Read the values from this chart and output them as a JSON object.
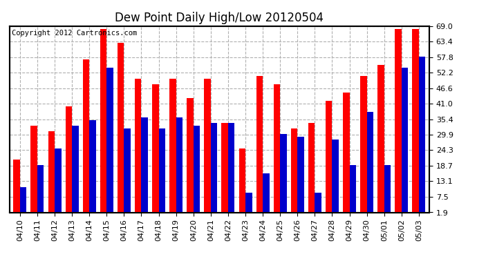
{
  "title": "Dew Point Daily High/Low 20120504",
  "copyright": "Copyright 2012 Cartronics.com",
  "dates": [
    "04/10",
    "04/11",
    "04/12",
    "04/13",
    "04/14",
    "04/15",
    "04/16",
    "04/17",
    "04/18",
    "04/19",
    "04/20",
    "04/21",
    "04/22",
    "04/23",
    "04/24",
    "04/25",
    "04/26",
    "04/27",
    "04/28",
    "04/29",
    "04/30",
    "05/01",
    "05/02",
    "05/03"
  ],
  "highs": [
    21,
    33,
    31,
    40,
    57,
    68,
    63,
    50,
    48,
    50,
    43,
    50,
    34,
    25,
    51,
    48,
    32,
    34,
    42,
    45,
    51,
    55,
    68,
    68
  ],
  "lows": [
    11,
    19,
    25,
    33,
    35,
    54,
    32,
    36,
    32,
    36,
    33,
    34,
    34,
    9,
    16,
    30,
    29,
    9,
    28,
    19,
    38,
    19,
    54,
    58
  ],
  "ymin": 1.9,
  "ymax": 69.0,
  "yticks": [
    1.9,
    7.5,
    13.1,
    18.7,
    24.3,
    29.9,
    35.4,
    41.0,
    46.6,
    52.2,
    57.8,
    63.4,
    69.0
  ],
  "bar_width": 0.38,
  "high_color": "#ff0000",
  "low_color": "#0000cc",
  "bg_color": "#ffffff",
  "grid_color": "#b0b0b0",
  "title_fontsize": 12,
  "tick_fontsize": 8,
  "copyright_fontsize": 7.5
}
